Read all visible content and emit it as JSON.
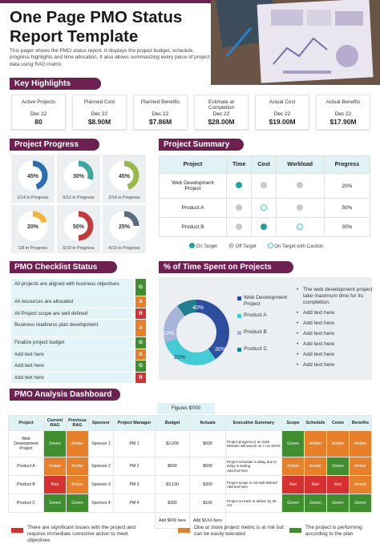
{
  "header": {
    "title": "One Page PMO Status Report Template",
    "description": "This pager shows the PMO status report. It displays the project budget, schedule, progress highlights and time allocation. It also allows summarizing every piece of project data using RAG matrix."
  },
  "sections": {
    "key_highlights": "Key Highlights",
    "project_progress": "Project Progress",
    "project_summary": "Project Summary",
    "pmo_checklist": "PMO Checklist Status",
    "time_spent": "% of Time Spent on Projects",
    "analysis_dashboard": "PMO Analysis Dashboard"
  },
  "highlights": [
    {
      "label": "Active Projects",
      "date": "Dec 22",
      "value": "80"
    },
    {
      "label": "Planned Cost",
      "date": "Dec 22",
      "value": "$8.90M"
    },
    {
      "label": "Planned Benefits",
      "date": "Dec 22",
      "value": "$7.86M"
    },
    {
      "label": "Estimate  at Completion",
      "date": "Dec 22",
      "value": "$28.00M"
    },
    {
      "label": "Actual Cost",
      "date": "Dec 22",
      "value": "$19.00M"
    },
    {
      "label": "Actual Benefits",
      "date": "Dec 22",
      "value": "$17.90M"
    }
  ],
  "progress": [
    {
      "pct": 45,
      "pct_label": "45%",
      "label": "2/14 in Progress",
      "color": "#2a6fb0"
    },
    {
      "pct": 30,
      "pct_label": "30%",
      "label": "5/12 in Progress",
      "color": "#3aa9a0"
    },
    {
      "pct": 45,
      "pct_label": "45%",
      "label": "2/14 in Progress",
      "color": "#9ab84a"
    },
    {
      "pct": 20,
      "pct_label": "20%",
      "label": "1/8 in Progress",
      "color": "#f2b53a"
    },
    {
      "pct": 50,
      "pct_label": "50%",
      "label": "5/10 in Progress",
      "color": "#c23b3b"
    },
    {
      "pct": 25,
      "pct_label": "25%",
      "label": "4/10 in Progress",
      "color": "#5b6b82"
    }
  ],
  "summary": {
    "headers": [
      "Project",
      "Time",
      "Cost",
      "Workload",
      "Progress"
    ],
    "rows": [
      {
        "project": "Web Development Project",
        "time": "on",
        "cost": "off",
        "workload": "off",
        "progress": "20%"
      },
      {
        "project": "Product A",
        "time": "off",
        "cost": "caution",
        "workload": "off",
        "progress": "50%"
      },
      {
        "project": "Product B",
        "time": "off",
        "cost": "on",
        "workload": "caution",
        "progress": "30%"
      }
    ],
    "legend": {
      "on": "On Target",
      "off": "Off Target",
      "caution": "On Target with Caution"
    },
    "colors": {
      "on": "#1fa39a",
      "off": "#c8c8c8",
      "caution": "#3ac8d6"
    }
  },
  "checklist": [
    {
      "text": "All projects are aligned with business objectives",
      "rag": "G"
    },
    {
      "text": "All resources are allocated",
      "rag": "A"
    },
    {
      "text": "All Project scope are well defined",
      "rag": "R"
    },
    {
      "text": "Business readiness plan development",
      "rag": "A"
    },
    {
      "text": "Finalize project budget",
      "rag": "G"
    },
    {
      "text": "Add text here",
      "rag": "A"
    },
    {
      "text": "Add text here",
      "rag": "G"
    },
    {
      "text": "Add text here",
      "rag": "R"
    }
  ],
  "rag_colors": {
    "G": "#3f8f2f",
    "A": "#e8802a",
    "R": "#d63030"
  },
  "time_spent": {
    "segments": [
      {
        "name": "Web Development Project",
        "pct": 40,
        "label": "40%",
        "color": "#2e4f9e"
      },
      {
        "name": "Product A",
        "pct": 30,
        "label": "30%",
        "color": "#45cbd6"
      },
      {
        "name": "Product B",
        "pct": 20,
        "label": "20%",
        "color": "#a9b4d9"
      },
      {
        "name": "Product C",
        "pct": 10,
        "label": "10%",
        "color": "#1e7f8e"
      }
    ],
    "legend_labels": [
      "Web Development Project",
      "Product A",
      "Product B",
      "Product C"
    ],
    "notes": [
      "The web development project take maximum time for its  completion.",
      "Add text here",
      "Add text here",
      "Add text here",
      "Add text here",
      "Add text here",
      "Add text here"
    ]
  },
  "dashboard": {
    "figures_label": "Figures $'000",
    "headers": [
      "Project",
      "Current RAG",
      "Previous RAG",
      "Sponsor",
      "Project Manager",
      "Budget",
      "Actuals",
      "Executive  Summary",
      "Scope",
      "Schedule",
      "Costs",
      "Benefits"
    ],
    "rows": [
      {
        "project": "Web Development Project",
        "current": "Green",
        "previous": "Amber",
        "sponsor": "Sponsor 1",
        "pm": "PM 1",
        "budget": "$2,000",
        "actuals": "$600",
        "summary": [
          "Project progress is on track",
          "Website will launch on 7 oct 2XXX"
        ],
        "scope": "Green",
        "schedule": "Amber",
        "costs": "Amber",
        "benefits": "Amber"
      },
      {
        "project": "Product A",
        "current": "Amber",
        "previous": "Amber",
        "sponsor": "Sponsor 2",
        "pm": "PM 2",
        "budget": "$600",
        "actuals": "$500",
        "summary": [
          "Project schedule is delay due to delay in testing",
          "Add text here"
        ],
        "scope": "Amber",
        "schedule": "Amber",
        "costs": "Green",
        "benefits": "Amber"
      },
      {
        "project": "Product B",
        "current": "Red",
        "previous": "Amber",
        "sponsor": "Sponsor 3",
        "pm": "PM 3",
        "budget": "$3,100",
        "actuals": "$300",
        "summary": [
          "Project scope is not well defined",
          "Add text here"
        ],
        "scope": "Red",
        "schedule": "Red",
        "costs": "Red",
        "benefits": "Amber"
      },
      {
        "project": "Product C",
        "current": "Green",
        "previous": "Green",
        "sponsor": "Sponsor 4",
        "pm": "PM 4",
        "budget": "$200",
        "actuals": "$100",
        "summary": [
          "Project on track to deliver by 30 oct"
        ],
        "scope": "Green",
        "schedule": "Green",
        "costs": "Green",
        "benefits": "Green"
      }
    ],
    "totals": {
      "budget": "Add $000 here",
      "actuals": "Add $XXX here"
    },
    "status_colors": {
      "Green": "#3f8f2f",
      "Amber": "#e8802a",
      "Red": "#d63030"
    }
  },
  "footer": [
    {
      "text": "There are significant issues with the project and requires immediate  corrective action to meet objectives",
      "color": "#d63030"
    },
    {
      "text": "One or more project metric is at risk but can be easily tolerated",
      "color": "#e8802a"
    },
    {
      "text": "The project is performing according to the plan",
      "color": "#3f8f2f"
    }
  ]
}
